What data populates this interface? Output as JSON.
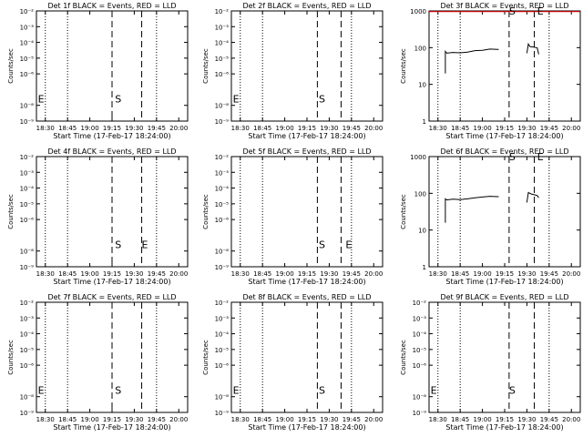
{
  "figure": {
    "x_title": "Start Time (17-Feb-17 18:24:00)",
    "y_title": "Counts/sec",
    "x_ticks": [
      "18:30",
      "18:45",
      "19:00",
      "19:15",
      "19:30",
      "19:45",
      "20:00"
    ],
    "marker_s": "S",
    "marker_e": "E",
    "colors": {
      "events": "#000000",
      "lld": "#ff0000"
    }
  },
  "chart_data": [
    {
      "type": "line",
      "title": "Det 1f BLACK = Events, RED = LLD",
      "xlabel": "Start Time (17-Feb-17 18:24:00)",
      "ylabel": "Counts/sec",
      "xlim": [
        "18:24",
        "20:06"
      ],
      "ylim": [
        1e-09,
        0.01
      ],
      "yscale": "log",
      "yticks": [
        "10⁻⁹",
        "10⁻⁸",
        "10⁻⁶",
        "10⁻⁵",
        "10⁻⁴",
        "10⁻³",
        "10⁻²"
      ],
      "ytick_values": [
        -9,
        -8,
        -6,
        -5,
        -4,
        -3,
        -2
      ],
      "dotted_lines": [
        "18:30",
        "18:45",
        "19:45"
      ],
      "dashed_lines": [
        "19:15",
        "19:35"
      ],
      "s_label": {
        "x": "19:17",
        "y": -7.8
      },
      "e_label": {
        "x": "18:25",
        "y": -7.8
      },
      "series": []
    },
    {
      "type": "line",
      "title": "Det 2f BLACK = Events, RED = LLD",
      "xlabel": "Start Time (17-Feb-17 18:24:00)",
      "ylabel": "Counts/sec",
      "xlim": [
        "18:24",
        "20:06"
      ],
      "ylim": [
        1e-09,
        0.01
      ],
      "yscale": "log",
      "yticks": [
        "10⁻⁹",
        "10⁻⁸",
        "10⁻⁶",
        "10⁻⁵",
        "10⁻⁴",
        "10⁻³",
        "10⁻²"
      ],
      "ytick_values": [
        -9,
        -8,
        -6,
        -5,
        -4,
        -3,
        -2
      ],
      "dotted_lines": [
        "18:30",
        "18:45",
        "19:45"
      ],
      "dashed_lines": [
        "19:22",
        "19:38"
      ],
      "s_label": {
        "x": "19:23",
        "y": -7.8
      },
      "e_label": {
        "x": "18:25",
        "y": -7.8
      },
      "series": []
    },
    {
      "type": "line",
      "title": "Det 3f BLACK = Events, RED = LLD",
      "xlabel": "Start Time (17-Feb-17 18:24:00)",
      "ylabel": "Counts/sec",
      "xlim": [
        "18:24",
        "20:06"
      ],
      "ylim": [
        1,
        1000
      ],
      "yscale": "log",
      "yticks": [
        "1",
        "10",
        "100",
        "1000"
      ],
      "ytick_values": [
        0,
        1,
        2,
        3
      ],
      "dotted_lines": [
        "18:30",
        "18:45",
        "19:45"
      ],
      "dashed_lines": [
        "19:18",
        "19:35"
      ],
      "s_label": {
        "x": "19:18",
        "y": 2.9
      },
      "e_label": {
        "x": "19:37",
        "y": 2.9
      },
      "series": [
        {
          "color": "#ff0000",
          "points": [
            [
              "18:24",
              2.98
            ],
            [
              "20:06",
              2.98
            ]
          ]
        },
        {
          "color": "#000000",
          "points": [
            [
              "18:35",
              1.3
            ],
            [
              "18:35",
              1.9
            ],
            [
              "18:36",
              1.85
            ],
            [
              "18:40",
              1.87
            ],
            [
              "18:45",
              1.86
            ],
            [
              "18:50",
              1.88
            ],
            [
              "18:55",
              1.92
            ],
            [
              "19:00",
              1.93
            ],
            [
              "19:05",
              1.96
            ],
            [
              "19:10",
              1.95
            ],
            [
              "19:11",
              1.95
            ]
          ]
        },
        {
          "color": "#000000",
          "points": [
            [
              "19:30",
              1.85
            ],
            [
              "19:31",
              2.1
            ],
            [
              "19:32",
              2.03
            ],
            [
              "19:34",
              2.02
            ],
            [
              "19:36",
              2.0
            ],
            [
              "19:37",
              1.99
            ],
            [
              "19:38",
              1.82
            ]
          ]
        }
      ]
    },
    {
      "type": "line",
      "title": "Det 4f BLACK = Events, RED = LLD",
      "xlabel": "Start Time (17-Feb-17 18:24:00)",
      "ylabel": "Counts/sec",
      "xlim": [
        "18:24",
        "20:06"
      ],
      "ylim": [
        1e-09,
        0.01
      ],
      "yscale": "log",
      "yticks": [
        "10⁻⁹",
        "10⁻⁸",
        "10⁻⁶",
        "10⁻⁵",
        "10⁻⁴",
        "10⁻³",
        "10⁻²"
      ],
      "ytick_values": [
        -9,
        -8,
        -6,
        -5,
        -4,
        -3,
        -2
      ],
      "dotted_lines": [
        "18:30",
        "18:45",
        "19:45"
      ],
      "dashed_lines": [
        "19:15",
        "19:35"
      ],
      "s_label": {
        "x": "19:17",
        "y": -7.8
      },
      "e_label": {
        "x": "19:35",
        "y": -7.8
      },
      "series": []
    },
    {
      "type": "line",
      "title": "Det 5f BLACK = Events, RED = LLD",
      "xlabel": "Start Time (17-Feb-17 18:24:00)",
      "ylabel": "Counts/sec",
      "xlim": [
        "18:24",
        "20:06"
      ],
      "ylim": [
        1e-09,
        0.01
      ],
      "yscale": "log",
      "yticks": [
        "10⁻⁹",
        "10⁻⁸",
        "10⁻⁶",
        "10⁻⁵",
        "10⁻⁴",
        "10⁻³",
        "10⁻²"
      ],
      "ytick_values": [
        -9,
        -8,
        -6,
        -5,
        -4,
        -3,
        -2
      ],
      "dotted_lines": [
        "18:30",
        "18:45",
        "19:45"
      ],
      "dashed_lines": [
        "19:22",
        "19:38"
      ],
      "s_label": {
        "x": "19:23",
        "y": -7.8
      },
      "e_label": {
        "x": "19:41",
        "y": -7.8
      },
      "series": []
    },
    {
      "type": "line",
      "title": "Det 6f BLACK = Events, RED = LLD",
      "xlabel": "Start Time (17-Feb-17 18:24:00)",
      "ylabel": "Counts/sec",
      "xlim": [
        "18:24",
        "20:06"
      ],
      "ylim": [
        1,
        1000
      ],
      "yscale": "log",
      "yticks": [
        "1",
        "10",
        "100",
        "1000"
      ],
      "ytick_values": [
        0,
        1,
        2,
        3
      ],
      "dotted_lines": [
        "18:30",
        "18:45",
        "19:45"
      ],
      "dashed_lines": [
        "19:18",
        "19:35"
      ],
      "s_label": {
        "x": "19:18",
        "y": 2.9
      },
      "e_label": {
        "x": "19:37",
        "y": 2.9
      },
      "series": [
        {
          "color": "#000000",
          "points": [
            [
              "18:35",
              1.2
            ],
            [
              "18:35",
              1.85
            ],
            [
              "18:36",
              1.82
            ],
            [
              "18:40",
              1.84
            ],
            [
              "18:45",
              1.83
            ],
            [
              "18:50",
              1.85
            ],
            [
              "18:55",
              1.88
            ],
            [
              "19:00",
              1.9
            ],
            [
              "19:05",
              1.92
            ],
            [
              "19:10",
              1.91
            ],
            [
              "19:11",
              1.91
            ]
          ]
        },
        {
          "color": "#000000",
          "points": [
            [
              "19:30",
              1.75
            ],
            [
              "19:31",
              2.02
            ],
            [
              "19:33",
              1.98
            ],
            [
              "19:35",
              1.96
            ],
            [
              "19:37",
              1.94
            ],
            [
              "19:38",
              1.88
            ]
          ]
        }
      ]
    },
    {
      "type": "line",
      "title": "Det 7f BLACK = Events, RED = LLD",
      "xlabel": "Start Time (17-Feb-17 18:24:00)",
      "ylabel": "Counts/sec",
      "xlim": [
        "18:24",
        "20:06"
      ],
      "ylim": [
        1e-09,
        0.01
      ],
      "yscale": "log",
      "yticks": [
        "10⁻⁹",
        "10⁻⁸",
        "10⁻⁶",
        "10⁻⁵",
        "10⁻⁴",
        "10⁻³",
        "10⁻²"
      ],
      "ytick_values": [
        -9,
        -8,
        -6,
        -5,
        -4,
        -3,
        -2
      ],
      "dotted_lines": [
        "18:30",
        "18:45",
        "19:45"
      ],
      "dashed_lines": [
        "19:15",
        "19:35"
      ],
      "s_label": {
        "x": "19:17",
        "y": -7.8
      },
      "e_label": {
        "x": "18:25",
        "y": -7.8
      },
      "series": []
    },
    {
      "type": "line",
      "title": "Det 8f BLACK = Events, RED = LLD",
      "xlabel": "Start Time (17-Feb-17 18:24:00)",
      "ylabel": "Counts/sec",
      "xlim": [
        "18:24",
        "20:06"
      ],
      "ylim": [
        1e-09,
        0.01
      ],
      "yscale": "log",
      "yticks": [
        "10⁻⁹",
        "10⁻⁸",
        "10⁻⁶",
        "10⁻⁵",
        "10⁻⁴",
        "10⁻³",
        "10⁻²"
      ],
      "ytick_values": [
        -9,
        -8,
        -6,
        -5,
        -4,
        -3,
        -2
      ],
      "dotted_lines": [
        "18:30",
        "18:45",
        "19:45"
      ],
      "dashed_lines": [
        "19:22",
        "19:38"
      ],
      "s_label": {
        "x": "19:23",
        "y": -7.8
      },
      "e_label": {
        "x": "18:25",
        "y": -7.8
      },
      "series": []
    },
    {
      "type": "line",
      "title": "Det 9f BLACK = Events, RED = LLD",
      "xlabel": "Start Time (17-Feb-17 18:24:00)",
      "ylabel": "Counts/sec",
      "xlim": [
        "18:24",
        "20:06"
      ],
      "ylim": [
        1e-09,
        0.01
      ],
      "yscale": "log",
      "yticks": [
        "10⁻⁹",
        "10⁻⁸",
        "10⁻⁶",
        "10⁻⁵",
        "10⁻⁴",
        "10⁻³",
        "10⁻²"
      ],
      "ytick_values": [
        -9,
        -8,
        -6,
        -5,
        -4,
        -3,
        -2
      ],
      "dotted_lines": [
        "18:30",
        "18:45",
        "19:45"
      ],
      "dashed_lines": [
        "19:18",
        "19:35"
      ],
      "s_label": {
        "x": "19:18",
        "y": -7.8
      },
      "e_label": {
        "x": "18:25",
        "y": -7.8
      },
      "series": []
    }
  ]
}
